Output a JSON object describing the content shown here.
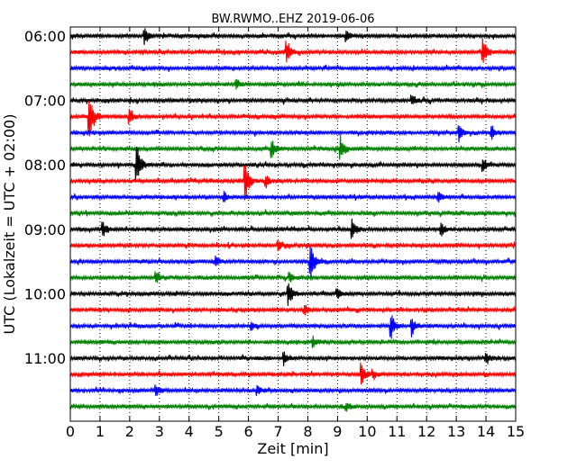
{
  "chart_data": {
    "type": "line",
    "title": "BW.RWMO..EHZ 2019-06-06",
    "xlabel": "Zeit  [min]",
    "ylabel": "UTC (Lokalzeit = UTC + 02:00)",
    "xlim": [
      0,
      15
    ],
    "x_ticks": [
      0,
      1,
      2,
      3,
      4,
      5,
      6,
      7,
      8,
      9,
      10,
      11,
      12,
      13,
      14,
      15
    ],
    "x_tick_labels": [
      "0",
      "1",
      "2",
      "3",
      "4",
      "5",
      "6",
      "7",
      "8",
      "9",
      "10",
      "11",
      "12",
      "13",
      "14",
      "15"
    ],
    "y_tick_labels": [
      "06:00",
      "07:00",
      "08:00",
      "09:00",
      "10:00",
      "11:00"
    ],
    "grid": "vertical dotted",
    "colors": [
      "#000000",
      "#ff0000",
      "#0000ff",
      "#008000"
    ],
    "traces": [
      {
        "start": "06:00",
        "color": "#000000",
        "events": [
          {
            "x": 2.5,
            "amp": 0.5
          },
          {
            "x": 9.3,
            "amp": 0.3
          }
        ]
      },
      {
        "start": "06:15",
        "color": "#ff0000",
        "events": [
          {
            "x": 7.3,
            "amp": 0.7
          },
          {
            "x": 13.9,
            "amp": 0.9
          }
        ]
      },
      {
        "start": "06:30",
        "color": "#0000ff",
        "events": []
      },
      {
        "start": "06:45",
        "color": "#008000",
        "events": [
          {
            "x": 5.6,
            "amp": 0.3
          }
        ]
      },
      {
        "start": "07:00",
        "color": "#000000",
        "events": [
          {
            "x": 11.5,
            "amp": 0.3
          }
        ]
      },
      {
        "start": "07:15",
        "color": "#ff0000",
        "events": [
          {
            "x": 0.65,
            "amp": 1.6
          },
          {
            "x": 2.0,
            "amp": 0.4
          }
        ]
      },
      {
        "start": "07:30",
        "color": "#0000ff",
        "events": [
          {
            "x": 13.1,
            "amp": 0.5
          },
          {
            "x": 14.2,
            "amp": 0.4
          }
        ]
      },
      {
        "start": "07:45",
        "color": "#008000",
        "events": [
          {
            "x": 6.8,
            "amp": 0.5
          },
          {
            "x": 9.1,
            "amp": 0.8
          }
        ]
      },
      {
        "start": "08:00",
        "color": "#000000",
        "events": [
          {
            "x": 2.25,
            "amp": 1.2
          },
          {
            "x": 13.9,
            "amp": 0.4
          }
        ]
      },
      {
        "start": "08:15",
        "color": "#ff0000",
        "events": [
          {
            "x": 5.9,
            "amp": 1.2
          },
          {
            "x": 6.6,
            "amp": 0.4
          }
        ]
      },
      {
        "start": "08:30",
        "color": "#0000ff",
        "events": [
          {
            "x": 5.2,
            "amp": 0.3
          },
          {
            "x": 12.4,
            "amp": 0.3
          }
        ]
      },
      {
        "start": "08:45",
        "color": "#008000",
        "events": []
      },
      {
        "start": "09:00",
        "color": "#000000",
        "events": [
          {
            "x": 1.1,
            "amp": 0.5
          },
          {
            "x": 9.5,
            "amp": 0.6
          },
          {
            "x": 12.5,
            "amp": 0.4
          }
        ]
      },
      {
        "start": "09:15",
        "color": "#ff0000",
        "events": [
          {
            "x": 7.0,
            "amp": 0.3
          }
        ]
      },
      {
        "start": "09:30",
        "color": "#0000ff",
        "events": [
          {
            "x": 8.1,
            "amp": 1.1
          },
          {
            "x": 4.9,
            "amp": 0.3
          }
        ]
      },
      {
        "start": "09:45",
        "color": "#008000",
        "events": [
          {
            "x": 2.9,
            "amp": 0.4
          },
          {
            "x": 7.4,
            "amp": 0.3
          }
        ]
      },
      {
        "start": "10:00",
        "color": "#000000",
        "events": [
          {
            "x": 7.35,
            "amp": 0.8
          },
          {
            "x": 9.0,
            "amp": 0.3
          }
        ]
      },
      {
        "start": "10:15",
        "color": "#ff0000",
        "events": [
          {
            "x": 7.9,
            "amp": 0.3
          }
        ]
      },
      {
        "start": "10:30",
        "color": "#0000ff",
        "events": [
          {
            "x": 6.1,
            "amp": 0.3
          },
          {
            "x": 10.8,
            "amp": 0.8
          },
          {
            "x": 11.5,
            "amp": 0.6
          }
        ]
      },
      {
        "start": "10:45",
        "color": "#008000",
        "events": [
          {
            "x": 8.2,
            "amp": 0.3
          }
        ]
      },
      {
        "start": "11:00",
        "color": "#000000",
        "events": [
          {
            "x": 7.2,
            "amp": 0.4
          },
          {
            "x": 14.0,
            "amp": 0.3
          }
        ]
      },
      {
        "start": "11:15",
        "color": "#ff0000",
        "events": [
          {
            "x": 9.8,
            "amp": 0.7
          },
          {
            "x": 10.2,
            "amp": 0.3
          }
        ]
      },
      {
        "start": "11:30",
        "color": "#0000ff",
        "events": [
          {
            "x": 2.9,
            "amp": 0.3
          },
          {
            "x": 6.3,
            "amp": 0.3
          }
        ]
      },
      {
        "start": "11:45",
        "color": "#008000",
        "events": [
          {
            "x": 9.3,
            "amp": 0.3
          }
        ]
      }
    ]
  }
}
